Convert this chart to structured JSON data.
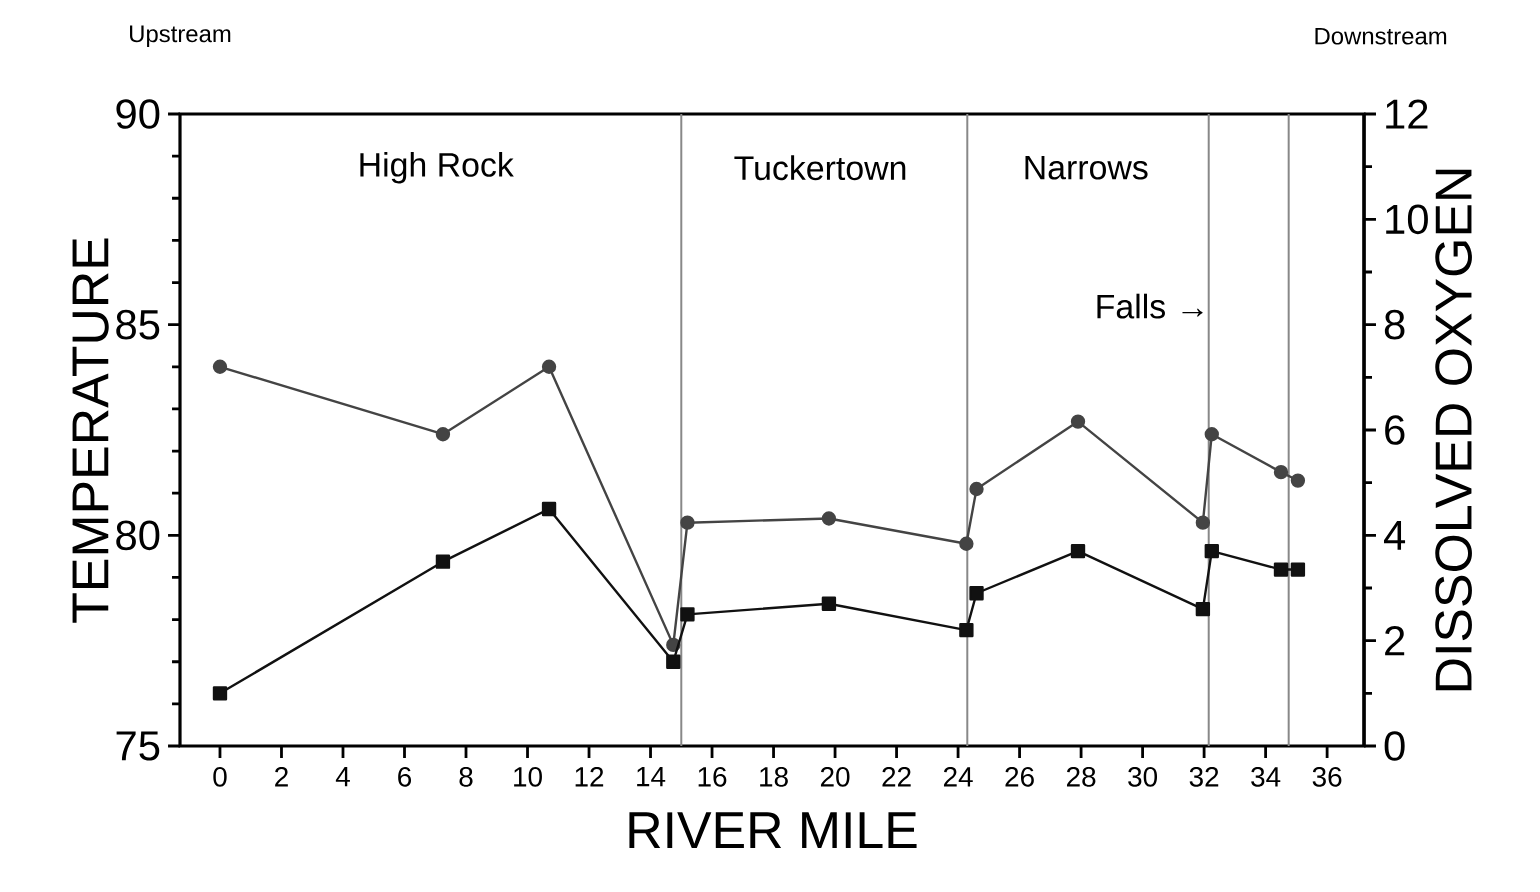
{
  "chart_data": {
    "type": "line",
    "xlabel": "RIVER MILE",
    "ylabel": "TEMPERATURE",
    "y2label": "DISSOLVED OXYGEN",
    "x": [
      0,
      7.25,
      10.7,
      14.74,
      15.2,
      19.8,
      24.27,
      24.6,
      27.9,
      31.96,
      32.25,
      34.5,
      35.05
    ],
    "series": [
      {
        "color": "#444444",
        "marker": "circle",
        "axis": "y",
        "values": [
          84.0,
          82.4,
          84.0,
          77.4,
          80.3,
          80.4,
          79.8,
          81.1,
          82.7,
          80.3,
          82.4,
          81.5,
          81.3
        ]
      },
      {
        "color": "#111111",
        "marker": "square",
        "axis": "y2",
        "values": [
          1.0,
          3.5,
          4.5,
          1.6,
          2.5,
          2.7,
          2.2,
          2.9,
          3.7,
          2.6,
          3.7,
          3.35,
          3.35
        ]
      }
    ],
    "xlim": [
      -1.3,
      37.2
    ],
    "xticks": [
      0,
      2,
      4,
      6,
      8,
      10,
      12,
      14,
      16,
      18,
      20,
      22,
      24,
      26,
      28,
      30,
      32,
      34,
      36
    ],
    "ylim": [
      75,
      90
    ],
    "yticks": [
      75,
      80,
      85,
      90
    ],
    "y2lim": [
      0,
      12
    ],
    "y2ticks": [
      0,
      2,
      4,
      6,
      8,
      10,
      12
    ],
    "ref_lines": [
      {
        "axis": "x",
        "value": 15.0,
        "color": "#888888"
      },
      {
        "axis": "x",
        "value": 24.3,
        "color": "#888888"
      },
      {
        "axis": "x",
        "value": 32.15,
        "color": "#888888"
      },
      {
        "axis": "x",
        "value": 34.75,
        "color": "#888888"
      }
    ],
    "annotations": [
      "Upstream",
      "Downstream",
      "High Rock",
      "Tuckertown",
      "Narrows",
      "Falls →"
    ]
  }
}
